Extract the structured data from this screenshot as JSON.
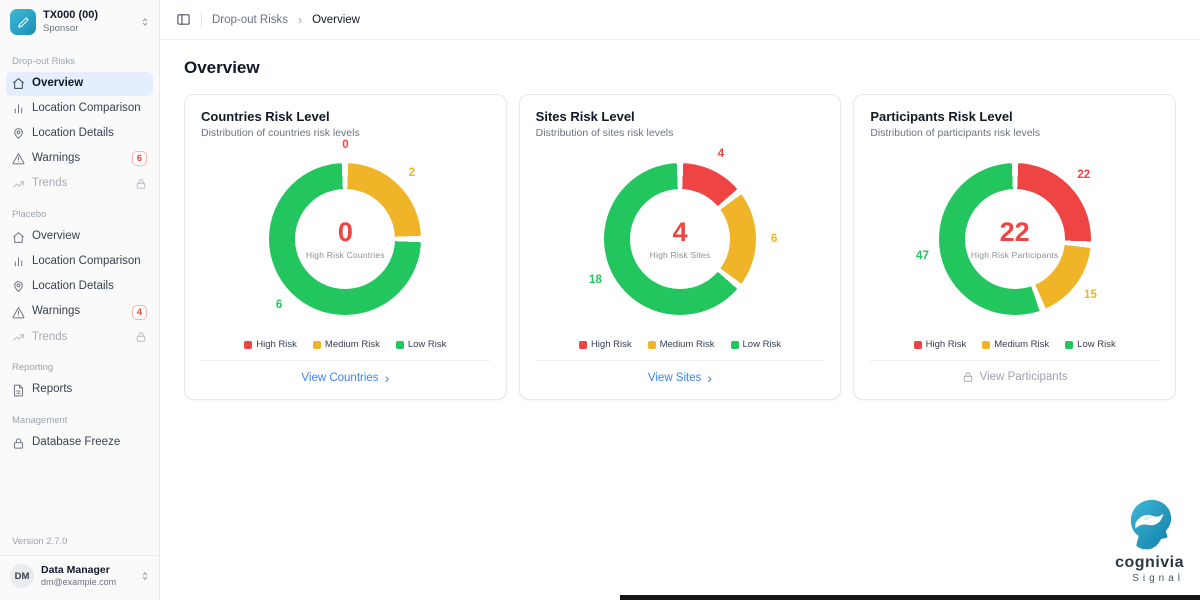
{
  "sidebar": {
    "workspace": {
      "title": "TX000 (00)",
      "subtitle": "Sponsor"
    },
    "sections": [
      {
        "label": "Drop-out Risks",
        "items": [
          {
            "label": "Overview",
            "icon": "home",
            "active": true
          },
          {
            "label": "Location Comparison",
            "icon": "bar-chart"
          },
          {
            "label": "Location Details",
            "icon": "map-pin"
          },
          {
            "label": "Warnings",
            "icon": "alert-triangle",
            "badge": "6"
          },
          {
            "label": "Trends",
            "icon": "trending-up",
            "locked": true
          }
        ]
      },
      {
        "label": "Placebo",
        "items": [
          {
            "label": "Overview",
            "icon": "home"
          },
          {
            "label": "Location Comparison",
            "icon": "bar-chart"
          },
          {
            "label": "Location Details",
            "icon": "map-pin"
          },
          {
            "label": "Warnings",
            "icon": "alert-triangle",
            "badge": "4"
          },
          {
            "label": "Trends",
            "icon": "trending-up",
            "locked": true
          }
        ]
      },
      {
        "label": "Reporting",
        "items": [
          {
            "label": "Reports",
            "icon": "file-text"
          }
        ]
      },
      {
        "label": "Management",
        "items": [
          {
            "label": "Database Freeze",
            "icon": "lock"
          }
        ]
      }
    ],
    "version": "Version 2.7.0",
    "user": {
      "initials": "DM",
      "name": "Data Manager",
      "email": "dm@example.com"
    }
  },
  "topbar": {
    "breadcrumb_parent": "Drop-out Risks",
    "breadcrumb_current": "Overview"
  },
  "main": {
    "title": "Overview"
  },
  "colors": {
    "high": "#ef4444",
    "medium": "#f0b429",
    "low": "#22c55e",
    "link": "#3b82f6"
  },
  "chart_data": [
    {
      "type": "pie",
      "title": "Countries Risk Level",
      "subtitle": "Distribution of countries risk levels",
      "categories": [
        "High Risk",
        "Medium Risk",
        "Low Risk"
      ],
      "values": [
        0,
        2,
        6
      ],
      "colors": [
        "#ef4444",
        "#f0b429",
        "#22c55e"
      ],
      "center_value": "0",
      "center_label": "High Risk Countries",
      "footer_label": "View Countries",
      "footer_locked": false,
      "legend_position": "bottom"
    },
    {
      "type": "pie",
      "title": "Sites Risk Level",
      "subtitle": "Distribution of sites risk levels",
      "categories": [
        "High Risk",
        "Medium Risk",
        "Low Risk"
      ],
      "values": [
        4,
        6,
        18
      ],
      "colors": [
        "#ef4444",
        "#f0b429",
        "#22c55e"
      ],
      "center_value": "4",
      "center_label": "High Risk Sites",
      "footer_label": "View Sites",
      "footer_locked": false,
      "legend_position": "bottom"
    },
    {
      "type": "pie",
      "title": "Participants Risk Level",
      "subtitle": "Distribution of participants risk levels",
      "categories": [
        "High Risk",
        "Medium Risk",
        "Low Risk"
      ],
      "values": [
        22,
        15,
        47
      ],
      "colors": [
        "#ef4444",
        "#f0b429",
        "#22c55e"
      ],
      "center_value": "22",
      "center_label": "High Risk Participants",
      "footer_label": "View Participants",
      "footer_locked": true,
      "legend_position": "bottom"
    }
  ],
  "brand": {
    "name": "cognivia",
    "sub": "Signal"
  }
}
